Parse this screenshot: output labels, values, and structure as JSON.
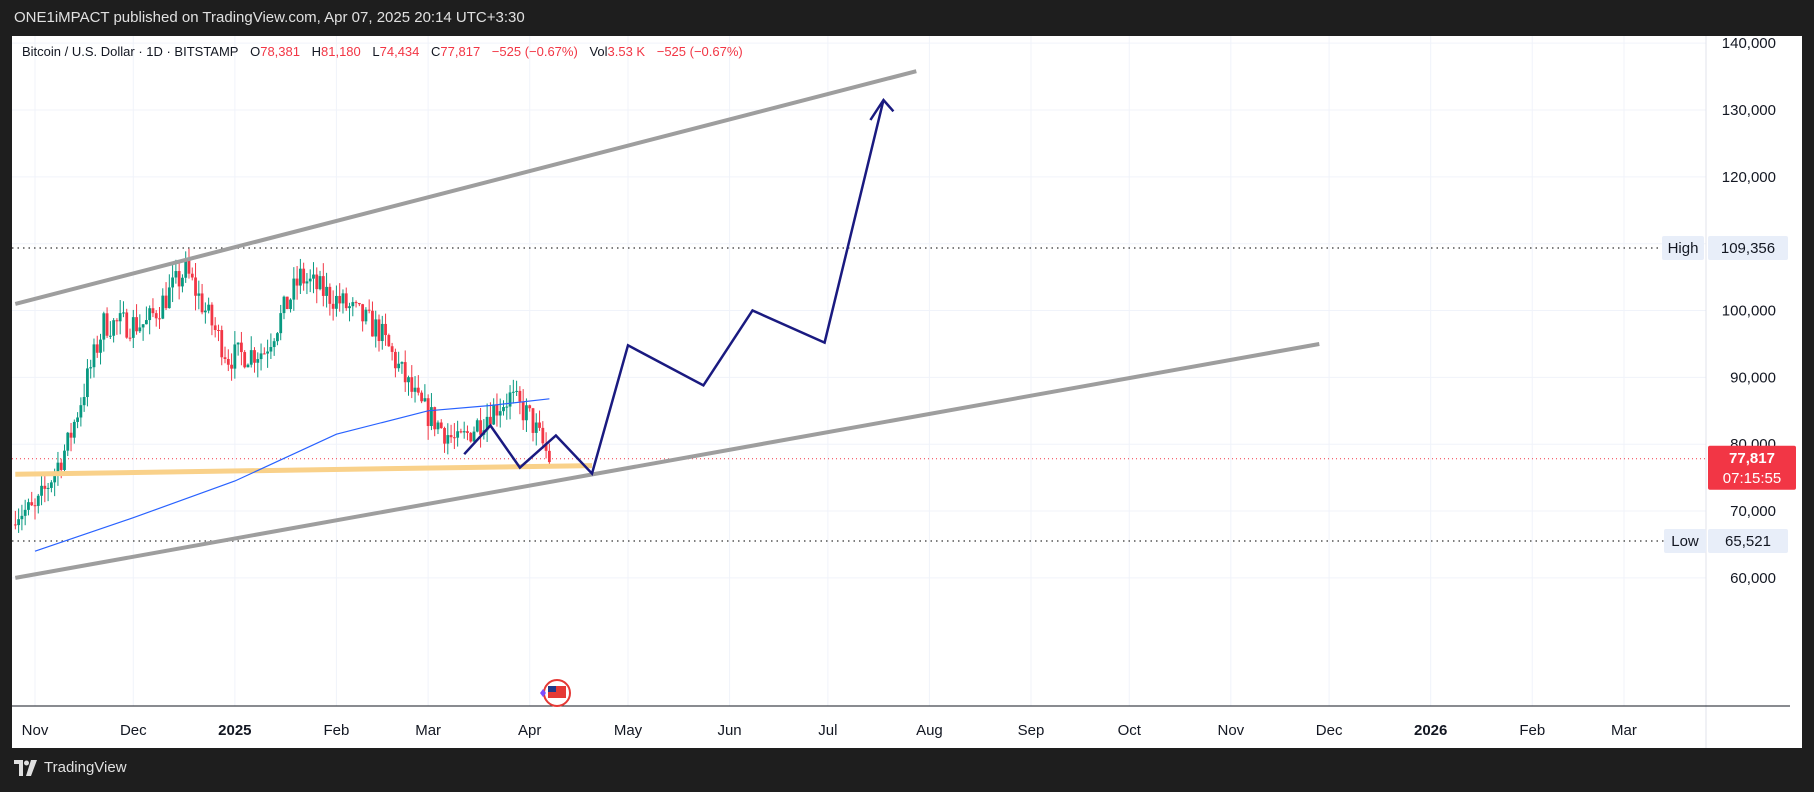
{
  "header": {
    "publish_line": "ONE1iMPACT published on TradingView.com, Apr 07, 2025 20:14 UTC+3:30"
  },
  "legend": {
    "symbol": "Bitcoin / U.S. Dollar · 1D · BITSTAMP",
    "open_label": "O",
    "open": "78,381",
    "high_label": "H",
    "high": "81,180",
    "low_label": "L",
    "low": "74,434",
    "close_label": "C",
    "close": "77,817",
    "change": "−525 (−0.67%)",
    "vol_label": "Vol",
    "vol": "3.53 K",
    "vol_change": "−525 (−0.67%)"
  },
  "footer": {
    "brand": "TradingView"
  },
  "colors": {
    "up": "#089981",
    "down": "#f23645",
    "channel": "#9e9e9e",
    "projection": "#1a1a80",
    "support": "#f9d18a",
    "ma": "#2962ff",
    "price_tag": "#f23645"
  },
  "chart_data": {
    "type": "candlestick",
    "y_axis": {
      "ticks": [
        60000,
        70000,
        80000,
        90000,
        100000,
        110000,
        120000,
        130000,
        140000
      ],
      "tick_labels": [
        "60,000",
        "70,000",
        "80,000",
        "90,000",
        "100,000",
        "",
        "120,000",
        "130,000",
        "140,000"
      ]
    },
    "x_axis": {
      "tick_labels": [
        "Nov",
        "Dec",
        "2025",
        "Feb",
        "Mar",
        "Apr",
        "May",
        "Jun",
        "Jul",
        "Aug",
        "Sep",
        "Oct",
        "Nov",
        "Dec",
        "2026",
        "Feb",
        "Mar"
      ],
      "bold": [
        "2025",
        "2026"
      ]
    },
    "price_labels": {
      "high_label": "High",
      "high_value": "109,356",
      "high": 109356,
      "low_label": "Low",
      "low_value": "65,521",
      "low": 65521,
      "last_value": "77,817",
      "last": 77817,
      "countdown": "07:15:55"
    },
    "anchors": [
      {
        "date": "2024-11-01",
        "x": 70000
      },
      {
        "date": "2024-11-11",
        "x": 80000
      },
      {
        "date": "2024-11-22",
        "x": 98000
      },
      {
        "date": "2024-12-05",
        "x": 98000
      },
      {
        "date": "2024-12-17",
        "x": 106000
      },
      {
        "date": "2024-12-30",
        "x": 93000
      },
      {
        "date": "2025-01-10",
        "x": 94000
      },
      {
        "date": "2025-01-21",
        "x": 105000
      },
      {
        "date": "2025-02-03",
        "x": 101000
      },
      {
        "date": "2025-02-14",
        "x": 97000
      },
      {
        "date": "2025-02-26",
        "x": 86000
      },
      {
        "date": "2025-03-10",
        "x": 80000
      },
      {
        "date": "2025-03-20",
        "x": 85000
      },
      {
        "date": "2025-03-26",
        "x": 87000
      },
      {
        "date": "2025-04-01",
        "x": 84000
      },
      {
        "date": "2025-04-07",
        "x": 77817
      }
    ],
    "moving_average": [
      {
        "date": "2024-11-01",
        "y": 64000
      },
      {
        "date": "2024-12-01",
        "y": 69000
      },
      {
        "date": "2025-01-01",
        "y": 74500
      },
      {
        "date": "2025-02-01",
        "y": 81500
      },
      {
        "date": "2025-03-01",
        "y": 85000
      },
      {
        "date": "2025-03-20",
        "y": 85800
      },
      {
        "date": "2025-04-07",
        "y": 86800
      }
    ],
    "channel_upper": [
      {
        "date": "2024-10-26",
        "y": 101000
      },
      {
        "date": "2025-07-28",
        "y": 135800
      }
    ],
    "channel_lower": [
      {
        "date": "2024-10-26",
        "y": 60000
      },
      {
        "date": "2025-11-28",
        "y": 95000
      }
    ],
    "support_line": [
      {
        "date": "2024-10-26",
        "y": 75500
      },
      {
        "date": "2025-04-20",
        "y": 76800
      }
    ],
    "projection": [
      {
        "date": "2025-03-12",
        "y": 78500
      },
      {
        "date": "2025-03-20",
        "y": 82800
      },
      {
        "date": "2025-03-29",
        "y": 76500
      },
      {
        "date": "2025-04-09",
        "y": 81300
      },
      {
        "date": "2025-04-20",
        "y": 75600
      },
      {
        "date": "2025-05-01",
        "y": 94800
      },
      {
        "date": "2025-05-24",
        "y": 88800
      },
      {
        "date": "2025-06-08",
        "y": 100000
      },
      {
        "date": "2025-06-30",
        "y": 95200
      },
      {
        "date": "2025-07-18",
        "y": 131500
      }
    ],
    "projection_arrowhead": [
      {
        "date": "2025-07-14",
        "y": 128500
      },
      {
        "date": "2025-07-18",
        "y": 131500
      },
      {
        "date": "2025-07-21",
        "y": 129800
      }
    ]
  }
}
